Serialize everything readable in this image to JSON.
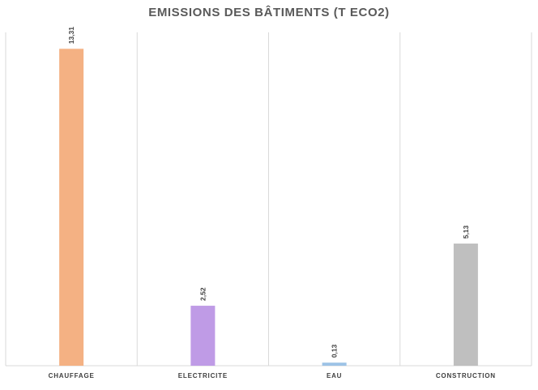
{
  "chart_data": {
    "type": "bar",
    "title": "EMISSIONS DES BÂTIMENTS (T ECO2)",
    "categories": [
      "CHAUFFAGE",
      "ELECTRICITE",
      "EAU",
      "CONSTRUCTION"
    ],
    "values": [
      13.31,
      2.52,
      0.13,
      5.13
    ],
    "data_labels": [
      "13,31",
      "2,52",
      "0,13",
      "5,13"
    ],
    "colors": [
      "#F4B183",
      "#BF9BE6",
      "#9DC3E6",
      "#BFBFBF"
    ],
    "xlabel": "",
    "ylabel": "",
    "ylim": [
      0,
      14
    ],
    "grid": "vertical category separators",
    "legend": "none"
  }
}
